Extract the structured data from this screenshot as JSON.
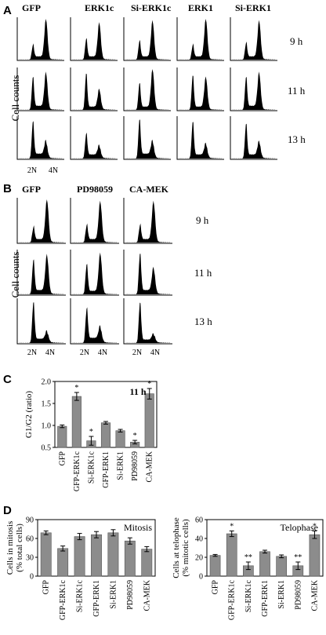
{
  "panel_A": {
    "letter": "A",
    "columns": [
      "GFP",
      "ERK1c",
      "Si-ERK1c",
      "ERK1",
      "Si-ERK1"
    ],
    "times": [
      "9 h",
      "11 h",
      "13 h"
    ],
    "ylabel": "Cell counts",
    "x_ticks": [
      "2N",
      "4N"
    ]
  },
  "panel_B": {
    "letter": "B",
    "columns": [
      "GFP",
      "PD98059",
      "CA-MEK"
    ],
    "times": [
      "9 h",
      "11 h",
      "13 h"
    ],
    "ylabel": "Cell counts",
    "x_ticks": [
      "2N",
      "4N"
    ]
  },
  "panel_C": {
    "letter": "C",
    "annotation": "11 h"
  },
  "panel_D": {
    "letter": "D"
  },
  "chart_data": [
    {
      "type": "bar",
      "panel": "C",
      "title": "11 h",
      "ylabel": "G1/G2 (ratio)",
      "ylim": [
        0.5,
        2.0
      ],
      "yticks": [
        "0.5",
        "1.0",
        "1.5",
        "2.0"
      ],
      "categories": [
        "GFP",
        "GFP-ERK1c",
        "Si-ERK1c",
        "GFP-ERK1",
        "Si-ERK1",
        "PD98059",
        "CA-MEK"
      ],
      "values": [
        0.98,
        1.66,
        0.65,
        1.06,
        0.88,
        0.62,
        1.72
      ],
      "errors": [
        0.03,
        0.09,
        0.1,
        0.03,
        0.03,
        0.04,
        0.12
      ],
      "significance": [
        "",
        "*",
        "*",
        "",
        "",
        "*",
        "*"
      ],
      "bar_color": "#8c8c8c"
    },
    {
      "type": "bar",
      "panel": "D-left",
      "title": "Mitosis",
      "ylabel": "Cells in mitosis (% total cells)",
      "ylabel_lines": [
        "Cells in mitosis",
        "(% total cells)"
      ],
      "ylim": [
        0,
        90
      ],
      "yticks": [
        "0",
        "30",
        "60",
        "90"
      ],
      "categories": [
        "GFP",
        "GFP-ERK1c",
        "Si-ERK1c",
        "GFP-ERK1",
        "Si-ERK1",
        "PD98059",
        "CA-MEK"
      ],
      "values": [
        69,
        44,
        63,
        66,
        69,
        56,
        43
      ],
      "errors": [
        3,
        4,
        5,
        5,
        5,
        5,
        4
      ],
      "significance": [
        "",
        "",
        "",
        "",
        "",
        "",
        ""
      ],
      "bar_color": "#8c8c8c"
    },
    {
      "type": "bar",
      "panel": "D-right",
      "title": "Telophase",
      "ylabel": "Cells at telophase (% mitotic cells)",
      "ylabel_lines": [
        "Cells at telophase",
        "(% mitotic cells)"
      ],
      "ylim": [
        0,
        60
      ],
      "yticks": [
        "0",
        "20",
        "40",
        "60"
      ],
      "categories": [
        "GFP",
        "GFP-ERK1c",
        "Si-ERK1c",
        "GFP-ERK1",
        "Si-ERK1",
        "PD98059",
        "CA-MEK"
      ],
      "values": [
        22,
        45,
        11,
        26,
        21,
        11,
        44
      ],
      "errors": [
        1,
        3,
        4,
        1.5,
        1.5,
        4,
        4
      ],
      "significance": [
        "",
        "*",
        "**",
        "",
        "",
        "**",
        "*"
      ],
      "bar_color": "#8c8c8c"
    }
  ]
}
